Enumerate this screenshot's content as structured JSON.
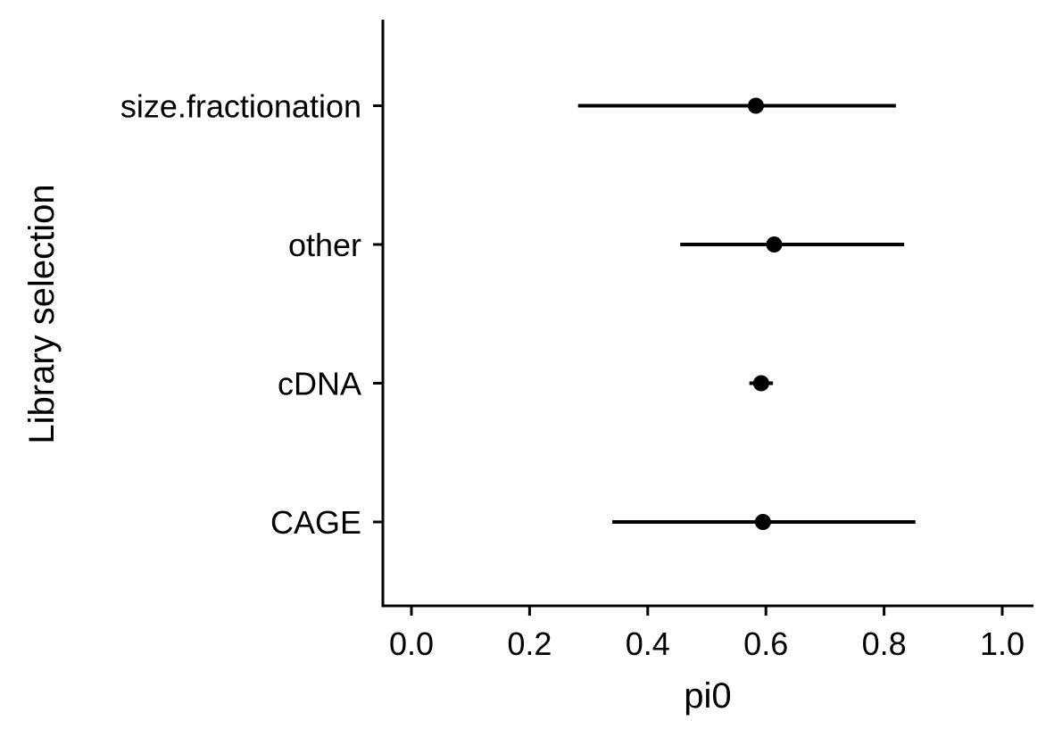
{
  "chart_data": {
    "type": "scatter",
    "subtype": "point-range",
    "title": "",
    "xlabel": "pi0",
    "ylabel": "Library selection",
    "xlim": [
      -0.05,
      1.05
    ],
    "x_ticks": [
      0.0,
      0.2,
      0.4,
      0.6,
      0.8,
      1.0
    ],
    "x_tick_labels": [
      "0.0",
      "0.2",
      "0.4",
      "0.6",
      "0.8",
      "1.0"
    ],
    "categories": [
      "CAGE",
      "cDNA",
      "other",
      "size.fractionation"
    ],
    "points": [
      {
        "category": "CAGE",
        "estimate": 0.595,
        "low": 0.34,
        "high": 0.853
      },
      {
        "category": "cDNA",
        "estimate": 0.592,
        "low": 0.572,
        "high": 0.612
      },
      {
        "category": "other",
        "estimate": 0.614,
        "low": 0.455,
        "high": 0.834
      },
      {
        "category": "size.fractionation",
        "estimate": 0.583,
        "low": 0.282,
        "high": 0.82
      }
    ],
    "grid": false,
    "legend": "none",
    "colors": {
      "marks": "#000000",
      "axes": "#000000"
    }
  }
}
